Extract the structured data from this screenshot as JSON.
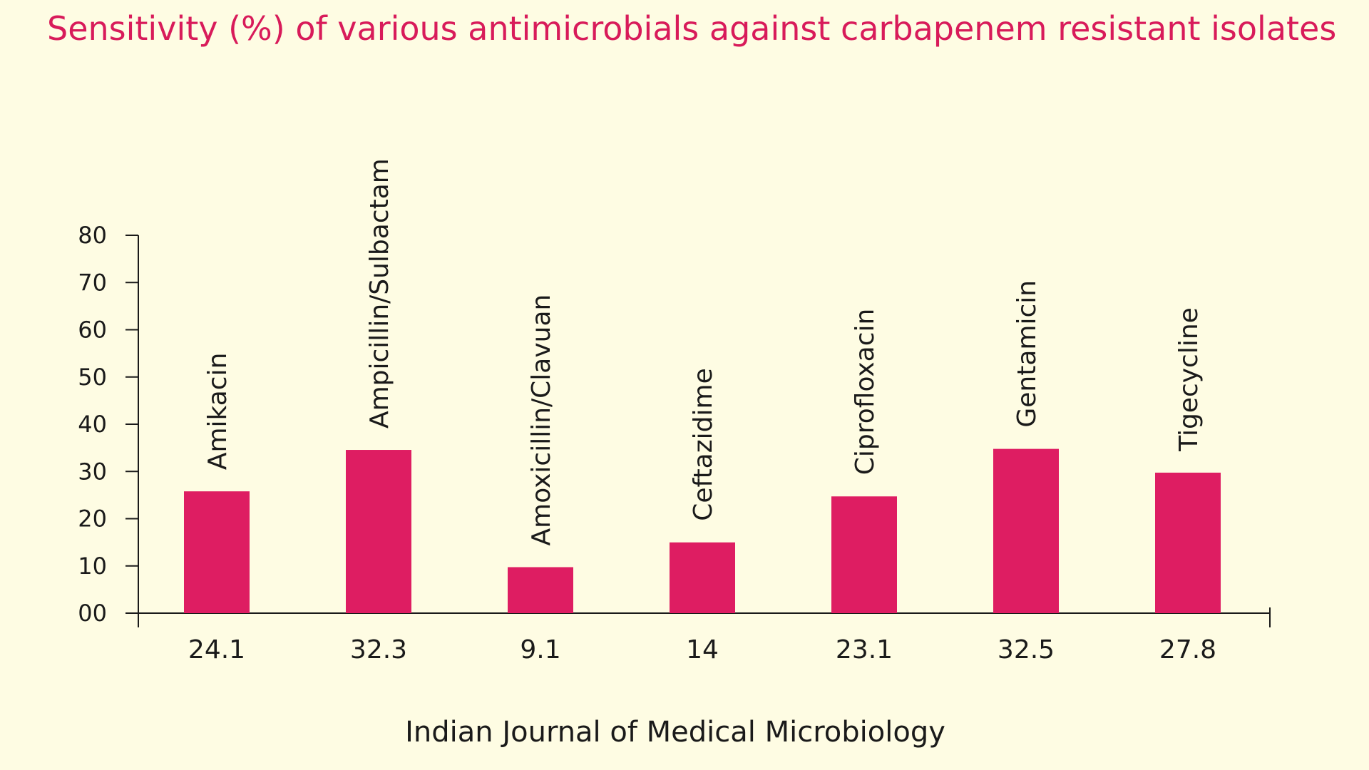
{
  "colors": {
    "background": "#fefce3",
    "bar": "#de1d62",
    "title": "#d81b5a",
    "text": "#1a1a1a"
  },
  "chart_data": {
    "type": "bar",
    "title": "Sensitivity (%) of various antimicrobials against carbapenem resistant isolates",
    "categories": [
      "Amikacin",
      "Ampicillin/Sulbactam",
      "Amoxicillin/Clavuan",
      "Ceftazidime",
      "Ciprofloxacin",
      "Gentamicin",
      "Tigecycline"
    ],
    "values": [
      24.1,
      32.3,
      9.1,
      14,
      23.1,
      32.5,
      27.8
    ],
    "value_labels": [
      "24.1",
      "32.3",
      "9.1",
      "14",
      "23.1",
      "32.5",
      "27.8"
    ],
    "y_ticks": [
      0,
      10,
      20,
      30,
      40,
      50,
      60,
      70,
      80
    ],
    "y_tick_labels": [
      "00",
      "10",
      "20",
      "30",
      "40",
      "50",
      "60",
      "70",
      "80"
    ],
    "ylim": [
      0,
      80
    ],
    "xlabel": "",
    "ylabel": "",
    "grid": false,
    "legend": "none"
  },
  "footer": {
    "source": "Indian Journal of Medical Microbiology"
  }
}
